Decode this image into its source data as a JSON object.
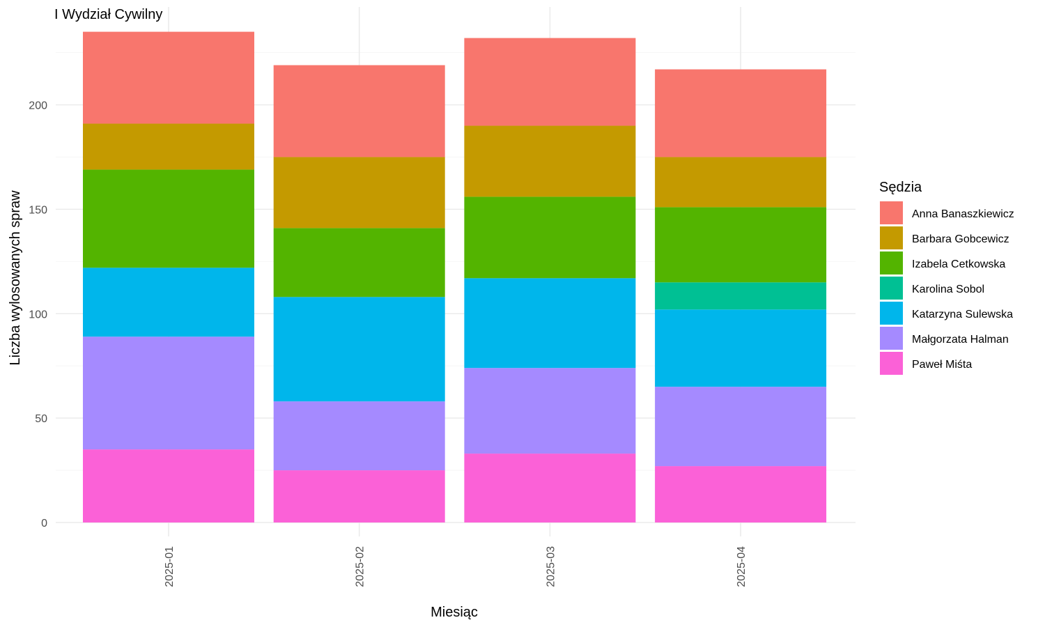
{
  "chart_data": {
    "type": "bar",
    "stacked": true,
    "title": "I Wydział Cywilny",
    "xlabel": "Miesiąc",
    "ylabel": "Liczba wylosowanych spraw",
    "ylim": [
      0,
      245
    ],
    "yticks": [
      0,
      50,
      100,
      150,
      200
    ],
    "grid": true,
    "legend_title": "Sędzia",
    "legend_position": "right",
    "categories": [
      "2025-01",
      "2025-02",
      "2025-03",
      "2025-04"
    ],
    "series": [
      {
        "name": "Anna Banaszkiewicz",
        "color": "#F8766D",
        "values": [
          44,
          44,
          42,
          42
        ]
      },
      {
        "name": "Barbara Gobcewicz",
        "color": "#C49A00",
        "values": [
          22,
          34,
          34,
          24
        ]
      },
      {
        "name": "Izabela Cetkowska",
        "color": "#53B400",
        "values": [
          47,
          33,
          39,
          36
        ]
      },
      {
        "name": "Karolina Sobol",
        "color": "#00C094",
        "values": [
          0,
          0,
          0,
          13
        ]
      },
      {
        "name": "Katarzyna Sulewska",
        "color": "#00B6EB",
        "values": [
          33,
          50,
          43,
          37
        ]
      },
      {
        "name": "Małgorzata Halman",
        "color": "#A58AFF",
        "values": [
          54,
          33,
          41,
          38
        ]
      },
      {
        "name": "Paweł Miśta",
        "color": "#FB61D7",
        "values": [
          35,
          25,
          33,
          27
        ]
      }
    ]
  }
}
